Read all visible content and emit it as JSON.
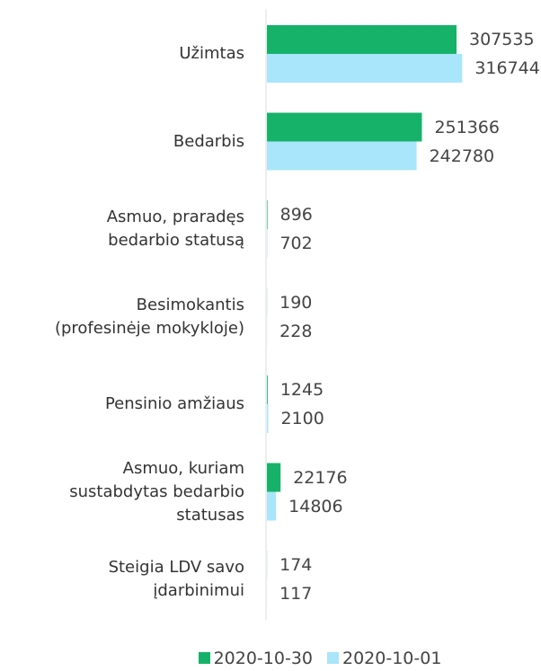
{
  "chart_data": {
    "type": "bar",
    "orientation": "horizontal",
    "categories": [
      "Užimtas",
      "Bedarbis",
      "Asmuo, praradęs\nbedarbio statusą",
      "Besimokantis\n(profesinėje mokykloje)",
      "Pensinio amžiaus",
      "Asmuo, kuriam\nsustabdytas bedarbio\nstatusas",
      "Steigia LDV savo\nįdarbinimui"
    ],
    "series": [
      {
        "name": "2020-10-30",
        "color": "#17b26a",
        "values": [
          307535,
          251366,
          896,
          190,
          1245,
          22176,
          174
        ]
      },
      {
        "name": "2020-10-01",
        "color": "#a9e5fb",
        "values": [
          316744,
          242780,
          702,
          228,
          2100,
          14806,
          117
        ]
      }
    ],
    "legend": "bottom"
  }
}
